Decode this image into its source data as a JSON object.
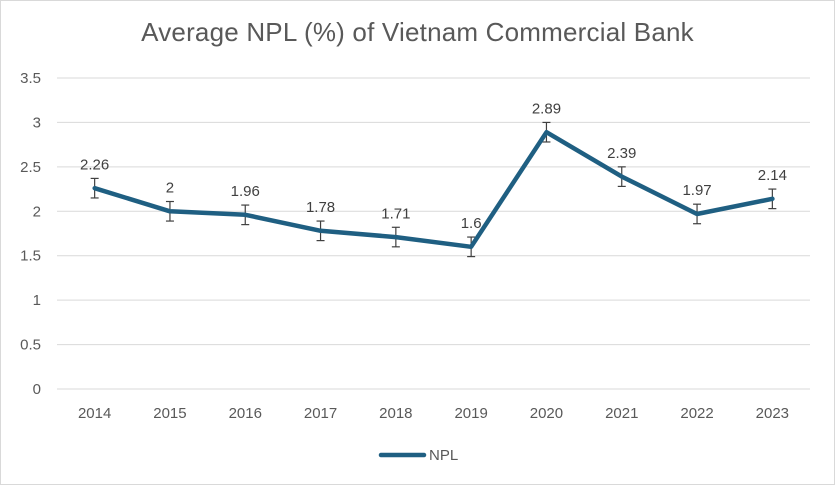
{
  "chart_data": {
    "type": "line",
    "title": "Average NPL (%) of Vietnam Commercial Bank",
    "categories": [
      "2014",
      "2015",
      "2016",
      "2017",
      "2018",
      "2019",
      "2020",
      "2021",
      "2022",
      "2023"
    ],
    "series": [
      {
        "name": "NPL",
        "values": [
          2.26,
          2,
          1.96,
          1.78,
          1.71,
          1.6,
          2.89,
          2.39,
          1.97,
          2.14
        ],
        "error": 0.11,
        "color": "#1f5f82"
      }
    ],
    "y_ticks": [
      "0",
      "0.5",
      "1",
      "1.5",
      "2",
      "2.5",
      "3",
      "3.5"
    ],
    "ylim": [
      0,
      3.5
    ],
    "xlabel": "",
    "ylabel": "",
    "grid": true,
    "legend_position": "bottom"
  }
}
